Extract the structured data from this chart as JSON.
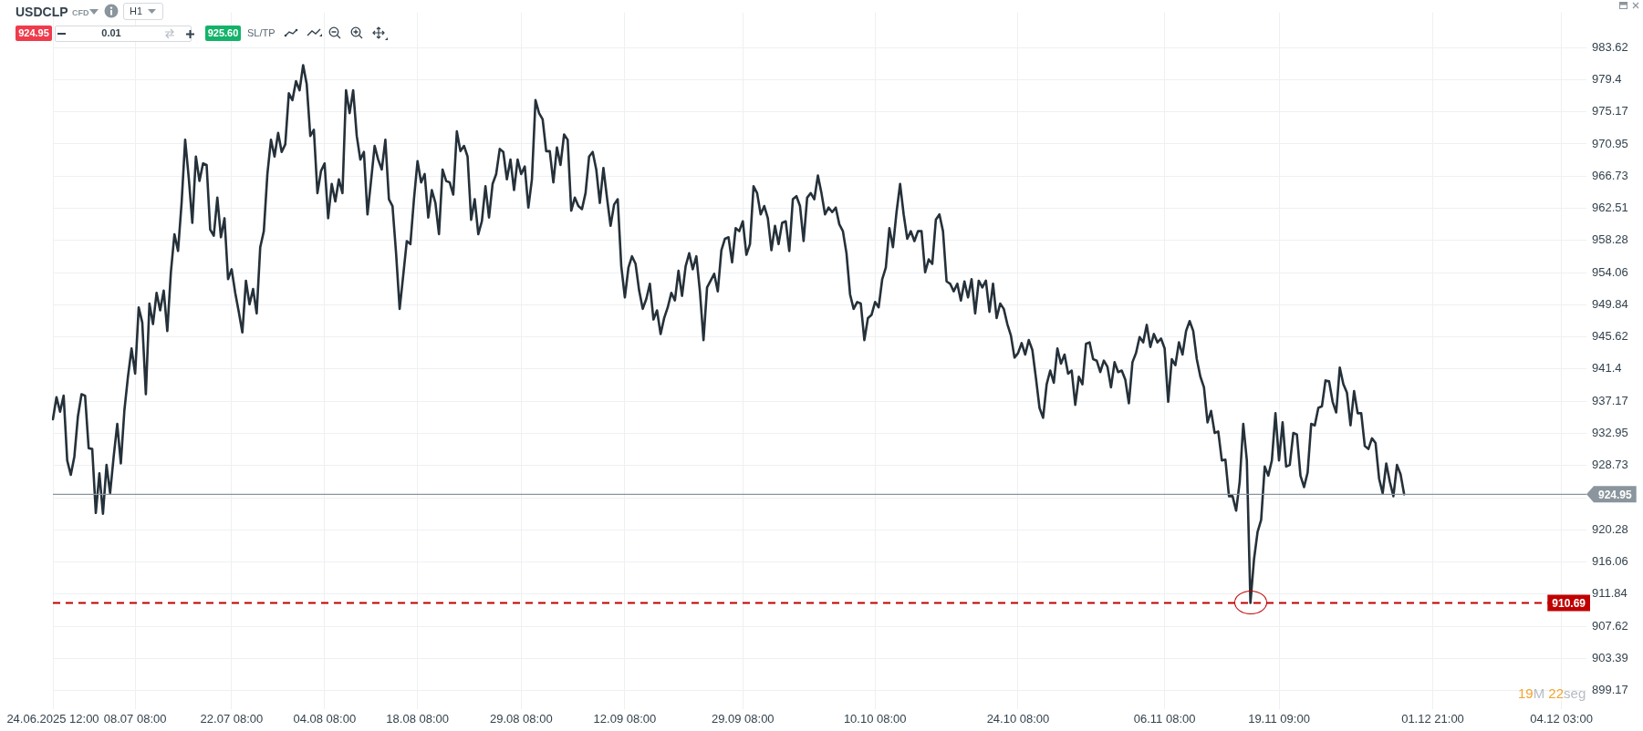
{
  "chart_data": {
    "type": "line",
    "title": "USDCLP",
    "subtitle": "CFD",
    "annotations": [
      "H1",
      "924.95",
      "0.01",
      "925.60",
      "SL/TP",
      "19M 22seg"
    ],
    "categories": [
      "24.06.2025 12:00",
      null,
      null,
      null,
      null,
      null,
      null,
      null,
      null,
      null,
      null,
      null,
      null,
      null,
      null,
      null,
      null,
      null,
      null,
      null,
      null,
      null,
      null,
      "08.07 08:00",
      null,
      null,
      null,
      null,
      null,
      null,
      null,
      null,
      null,
      null,
      null,
      null,
      null,
      null,
      null,
      null,
      null,
      null,
      null,
      null,
      null,
      null,
      null,
      null,
      null,
      null,
      "22.07 08:00",
      null,
      null,
      null,
      null,
      null,
      null,
      null,
      null,
      null,
      null,
      null,
      null,
      null,
      null,
      null,
      null,
      null,
      null,
      null,
      null,
      null,
      null,
      null,
      null,
      null,
      "04.08 08:00",
      null,
      null,
      null,
      null,
      null,
      null,
      null,
      null,
      null,
      null,
      null,
      null,
      null,
      null,
      null,
      null,
      null,
      null,
      null,
      null,
      null,
      null,
      null,
      null,
      null,
      "18.08 08:00",
      null,
      null,
      null,
      null,
      null,
      null,
      null,
      null,
      null,
      null,
      null,
      null,
      null,
      null,
      null,
      null,
      null,
      null,
      null,
      null,
      null,
      null,
      null,
      null,
      null,
      null,
      null,
      null,
      "29.08 08:00",
      null,
      null,
      null,
      null,
      null,
      null,
      null,
      null,
      null,
      null,
      null,
      null,
      null,
      null,
      null,
      null,
      null,
      null,
      null,
      null,
      null,
      null,
      null,
      null,
      null,
      null,
      null,
      null,
      "12.09 08:00",
      null,
      null,
      null,
      null,
      null,
      null,
      null,
      null,
      null,
      null,
      null,
      null,
      null,
      null,
      null,
      null,
      null,
      null,
      null,
      null,
      null,
      null,
      null,
      null,
      null,
      null,
      null,
      null,
      null,
      null,
      null,
      null,
      "29.09 08:00",
      null,
      null,
      null,
      null,
      null,
      null,
      null,
      null,
      null,
      null,
      null,
      null,
      null,
      null,
      null,
      null,
      null,
      null,
      null,
      null,
      null,
      null,
      null,
      null,
      null,
      null,
      null,
      null,
      null,
      null,
      null,
      null,
      null,
      null,
      null,
      null,
      "10.10 08:00",
      null,
      null,
      null,
      null,
      null,
      null,
      null,
      null,
      null,
      null,
      null,
      null,
      null,
      null,
      null,
      null,
      null,
      null,
      null,
      null,
      null,
      null,
      null,
      null,
      null,
      null,
      null,
      null,
      null,
      null,
      null,
      null,
      null,
      null,
      null,
      null,
      null,
      null,
      null,
      "24.10 08:00",
      null,
      null,
      null,
      null,
      null,
      null,
      null,
      null,
      null,
      null,
      null,
      null,
      null,
      null,
      null,
      null,
      null,
      null,
      null,
      null,
      null,
      null,
      null,
      null,
      null,
      null,
      null,
      null,
      null,
      null,
      null,
      null,
      null,
      null,
      null,
      null,
      null,
      null,
      null,
      null,
      "06.11 08:00",
      null,
      null,
      null,
      null,
      null,
      null,
      null,
      null,
      null,
      null,
      null,
      null,
      null,
      null,
      null,
      null,
      null,
      null,
      null,
      null,
      null,
      null,
      null,
      null,
      null,
      null,
      null,
      null,
      null,
      null,
      null,
      "19.11 09:00",
      null,
      null,
      null,
      null,
      null,
      null,
      null,
      null,
      null,
      null,
      null,
      null,
      null,
      null,
      null,
      null,
      null,
      null,
      null,
      null,
      null,
      null,
      null,
      null,
      null,
      null,
      null,
      null,
      null,
      null,
      null,
      null,
      null,
      null,
      null,
      null,
      null,
      null,
      null,
      null,
      null,
      null,
      "01.12 21:00",
      null,
      null,
      null,
      null,
      null,
      null,
      null,
      null,
      null,
      null,
      null,
      null,
      null,
      null,
      null,
      null,
      null,
      null,
      null,
      null,
      null,
      null,
      null,
      null,
      null,
      null,
      null,
      null,
      null,
      null,
      null,
      null,
      null,
      null,
      null,
      "04.12 03:00",
      null,
      null,
      null,
      null,
      null,
      null,
      null
    ],
    "ylim": [
      896.7,
      988.2
    ],
    "yticks": [
      899.17,
      903.39,
      907.62,
      911.84,
      916.06,
      920.28,
      {
        "value": 924.51,
        "label": null
      },
      928.73,
      932.95,
      937.17,
      941.4,
      945.62,
      949.84,
      954.06,
      958.28,
      962.51,
      966.73,
      970.95,
      975.17,
      979.4,
      983.62
    ],
    "grid": true,
    "legend": false,
    "marker": "none",
    "line_style": "solid",
    "ref_lines": [
      {
        "axis": "y",
        "value": 924.95,
        "label": "924.95",
        "color": "#8a959d",
        "line_style": "solid"
      },
      {
        "axis": "y",
        "value": 910.69,
        "label": "910.69",
        "color": "#c00000",
        "line_style": "dashed"
      }
    ],
    "series": [
      {
        "color": "#25313a",
        "values": [
          934.8,
          937.7,
          935.8,
          937.9,
          929.4,
          927.5,
          929.9,
          935.2,
          938.1,
          937.9,
          931.0,
          930.9,
          922.5,
          927.7,
          922.4,
          928.8,
          925.1,
          929.9,
          934.2,
          929.0,
          936.0,
          940.4,
          944.1,
          940.8,
          949.5,
          947.5,
          938.1,
          950.0,
          947.3,
          951.4,
          949.1,
          951.7,
          946.4,
          954.1,
          959.1,
          956.9,
          963.2,
          971.5,
          966.5,
          960.6,
          969.3,
          966.1,
          968.4,
          968.2,
          959.7,
          958.9,
          963.9,
          958.7,
          961.2,
          953.2,
          954.5,
          951.4,
          948.9,
          946.2,
          953.0,
          949.9,
          951.9,
          948.7,
          957.4,
          959.5,
          967.0,
          971.5,
          969.3,
          972.4,
          969.9,
          970.9,
          977.6,
          976.7,
          979.2,
          978.0,
          981.3,
          978.8,
          972.0,
          972.8,
          964.5,
          967.4,
          968.4,
          961.2,
          965.7,
          963.4,
          966.3,
          964.5,
          978.0,
          975.0,
          978.0,
          972.0,
          968.9,
          969.9,
          961.7,
          966.1,
          970.7,
          968.9,
          967.6,
          971.5,
          963.7,
          962.8,
          956.6,
          949.3,
          953.7,
          958.2,
          957.8,
          963.7,
          968.7,
          965.9,
          967.0,
          961.3,
          964.9,
          963.2,
          959.1,
          967.6,
          966.1,
          965.9,
          964.3,
          972.6,
          970.0,
          970.7,
          969.3,
          961.0,
          963.7,
          959.1,
          960.8,
          965.4,
          961.3,
          965.7,
          967.0,
          970.3,
          969.9,
          966.3,
          968.9,
          964.9,
          968.9,
          967.0,
          968.0,
          962.6,
          966.3,
          976.7,
          975.0,
          974.2,
          970.0,
          970.0,
          965.9,
          970.5,
          968.2,
          972.2,
          971.5,
          962.2,
          963.9,
          962.8,
          962.4,
          964.5,
          969.3,
          969.9,
          967.6,
          963.2,
          967.8,
          963.9,
          960.2,
          963.0,
          963.7,
          954.9,
          950.8,
          954.7,
          956.2,
          955.2,
          951.7,
          949.3,
          950.6,
          952.6,
          947.9,
          949.1,
          946.0,
          948.1,
          949.5,
          951.4,
          950.4,
          954.3,
          951.0,
          954.9,
          956.6,
          954.5,
          956.2,
          951.6,
          945.2,
          952.1,
          953.0,
          953.9,
          951.6,
          957.0,
          958.5,
          958.7,
          955.4,
          959.9,
          959.5,
          960.8,
          956.4,
          957.8,
          965.4,
          964.5,
          961.7,
          962.8,
          961.2,
          957.0,
          960.2,
          957.8,
          960.6,
          960.8,
          956.9,
          963.7,
          964.1,
          962.8,
          958.2,
          963.9,
          964.5,
          963.7,
          966.8,
          964.5,
          961.7,
          962.6,
          962.0,
          962.6,
          960.4,
          959.5,
          956.6,
          951.2,
          949.3,
          950.2,
          950.0,
          945.2,
          948.1,
          948.5,
          950.2,
          949.5,
          953.2,
          954.7,
          959.9,
          957.4,
          962.0,
          965.7,
          961.7,
          958.5,
          959.5,
          958.2,
          959.5,
          959.5,
          954.1,
          955.8,
          955.2,
          961.0,
          961.7,
          959.5,
          952.9,
          952.6,
          951.6,
          952.6,
          950.4,
          952.9,
          950.8,
          953.2,
          948.7,
          953.0,
          952.1,
          953.0,
          948.9,
          952.6,
          948.1,
          950.0,
          949.3,
          947.3,
          945.8,
          942.9,
          943.5,
          944.8,
          943.3,
          945.2,
          943.9,
          940.2,
          936.3,
          935.0,
          939.4,
          941.2,
          939.6,
          944.1,
          942.1,
          943.3,
          940.8,
          941.2,
          936.7,
          940.4,
          939.4,
          944.7,
          944.9,
          942.7,
          942.5,
          941.0,
          942.5,
          941.7,
          939.0,
          942.3,
          941.0,
          941.2,
          940.0,
          936.9,
          942.3,
          943.5,
          945.6,
          944.9,
          947.2,
          944.3,
          946.0,
          944.9,
          945.4,
          944.1,
          937.1,
          942.7,
          941.9,
          944.9,
          943.3,
          946.4,
          947.7,
          946.4,
          942.7,
          940.4,
          939.0,
          934.4,
          935.9,
          933.0,
          933.2,
          929.4,
          929.5,
          924.7,
          924.7,
          922.8,
          926.6,
          934.2,
          929.4,
          910.69,
          916.4,
          920.0,
          921.6,
          928.6,
          927.4,
          929.4,
          935.6,
          929.4,
          934.4,
          928.6,
          928.8,
          933.0,
          932.8,
          927.4,
          925.9,
          927.8,
          934.2,
          934.0,
          936.3,
          936.5,
          939.9,
          939.8,
          937.1,
          935.7,
          941.6,
          939.4,
          938.3,
          934.0,
          938.5,
          935.6,
          935.6,
          931.3,
          930.9,
          932.3,
          931.7,
          927.0,
          925.1,
          929.0,
          926.6,
          924.7,
          928.8,
          927.6,
          924.95,
          null,
          null,
          null,
          null,
          null,
          null,
          null,
          null,
          null,
          null,
          null,
          null,
          null,
          null,
          null,
          null,
          null,
          null,
          null,
          null,
          null,
          null,
          null,
          null,
          null,
          null,
          null,
          null,
          null,
          null,
          null,
          null,
          null,
          null,
          null,
          null,
          null,
          null,
          null,
          null,
          null,
          null,
          null,
          null,
          null,
          null,
          null,
          null,
          null,
          null,
          null
        ]
      }
    ]
  }
}
